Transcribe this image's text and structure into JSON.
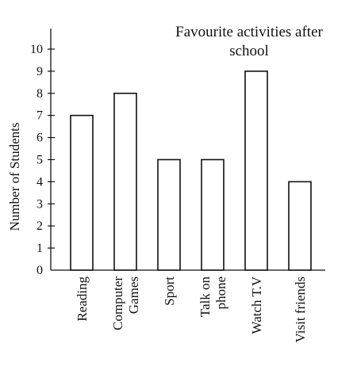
{
  "chart_data": {
    "type": "bar",
    "title": "Favourite activities after school",
    "title_lines": [
      "Favourite activities after",
      "school"
    ],
    "ylabel": "Number of Students",
    "xlabel": "",
    "ylim": [
      0,
      10
    ],
    "yticks": [
      "0",
      "1",
      "2",
      "3",
      "4",
      "5",
      "6",
      "7",
      "8",
      "9",
      "10"
    ],
    "grid": false,
    "categories": [
      [
        "Reading"
      ],
      [
        "Computer",
        "Games"
      ],
      [
        "Sport"
      ],
      [
        "Talk on",
        "phone"
      ],
      [
        "Watch T.V"
      ],
      [
        "Visit friends"
      ]
    ],
    "values": [
      7,
      8,
      5,
      5,
      9,
      4
    ],
    "colors": {
      "bar_fill": "#ffffff",
      "bar_stroke": "#111111"
    }
  }
}
